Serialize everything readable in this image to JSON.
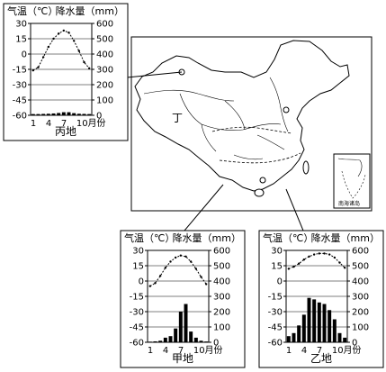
{
  "charts": [
    {
      "id": "bing",
      "place": "丙地",
      "temp_label": "气温（℃）",
      "precip_label": "降水量（mm）",
      "month_ticks": [
        "1",
        "4",
        "7",
        "10月份"
      ],
      "temp_axis": [
        "30",
        "15",
        "0",
        "-15",
        "-30",
        "-45",
        "-60"
      ],
      "precip_axis": [
        "600",
        "500",
        "400",
        "300",
        "200",
        "100",
        "0"
      ],
      "temps": [
        -16,
        -13,
        -3,
        7,
        15,
        20,
        23,
        21,
        13,
        3,
        -8,
        -14
      ],
      "precip": [
        8,
        8,
        9,
        10,
        12,
        15,
        20,
        20,
        14,
        10,
        9,
        8
      ]
    },
    {
      "id": "jia",
      "place": "甲地",
      "temp_label": "气温（℃）",
      "precip_label": "降水量（mm）",
      "month_ticks": [
        "1",
        "4",
        "7",
        "10月份"
      ],
      "temp_axis": [
        "30",
        "15",
        "0",
        "-15",
        "-30",
        "-45",
        "-60"
      ],
      "precip_axis": [
        "600",
        "500",
        "400",
        "300",
        "200",
        "100",
        "0"
      ],
      "temps": [
        -5,
        -2,
        5,
        13,
        19,
        23,
        25,
        24,
        19,
        12,
        4,
        -3
      ],
      "precip": [
        4,
        6,
        10,
        30,
        40,
        90,
        200,
        250,
        70,
        30,
        10,
        5
      ]
    },
    {
      "id": "yi",
      "place": "乙地",
      "temp_label": "气温（℃）",
      "precip_label": "降水量（mm）",
      "month_ticks": [
        "1",
        "4",
        "7",
        "10月份"
      ],
      "temp_axis": [
        "30",
        "15",
        "0",
        "-15",
        "-30",
        "-45",
        "-60"
      ],
      "precip_axis": [
        "600",
        "500",
        "400",
        "300",
        "200",
        "100",
        "0"
      ],
      "temps": [
        12,
        14,
        17,
        21,
        24,
        26,
        27,
        27,
        26,
        23,
        18,
        13
      ],
      "precip": [
        40,
        60,
        110,
        180,
        290,
        280,
        260,
        250,
        210,
        150,
        60,
        30
      ]
    }
  ],
  "map": {
    "region_label": "丁",
    "inset_label": "南海诸岛"
  }
}
